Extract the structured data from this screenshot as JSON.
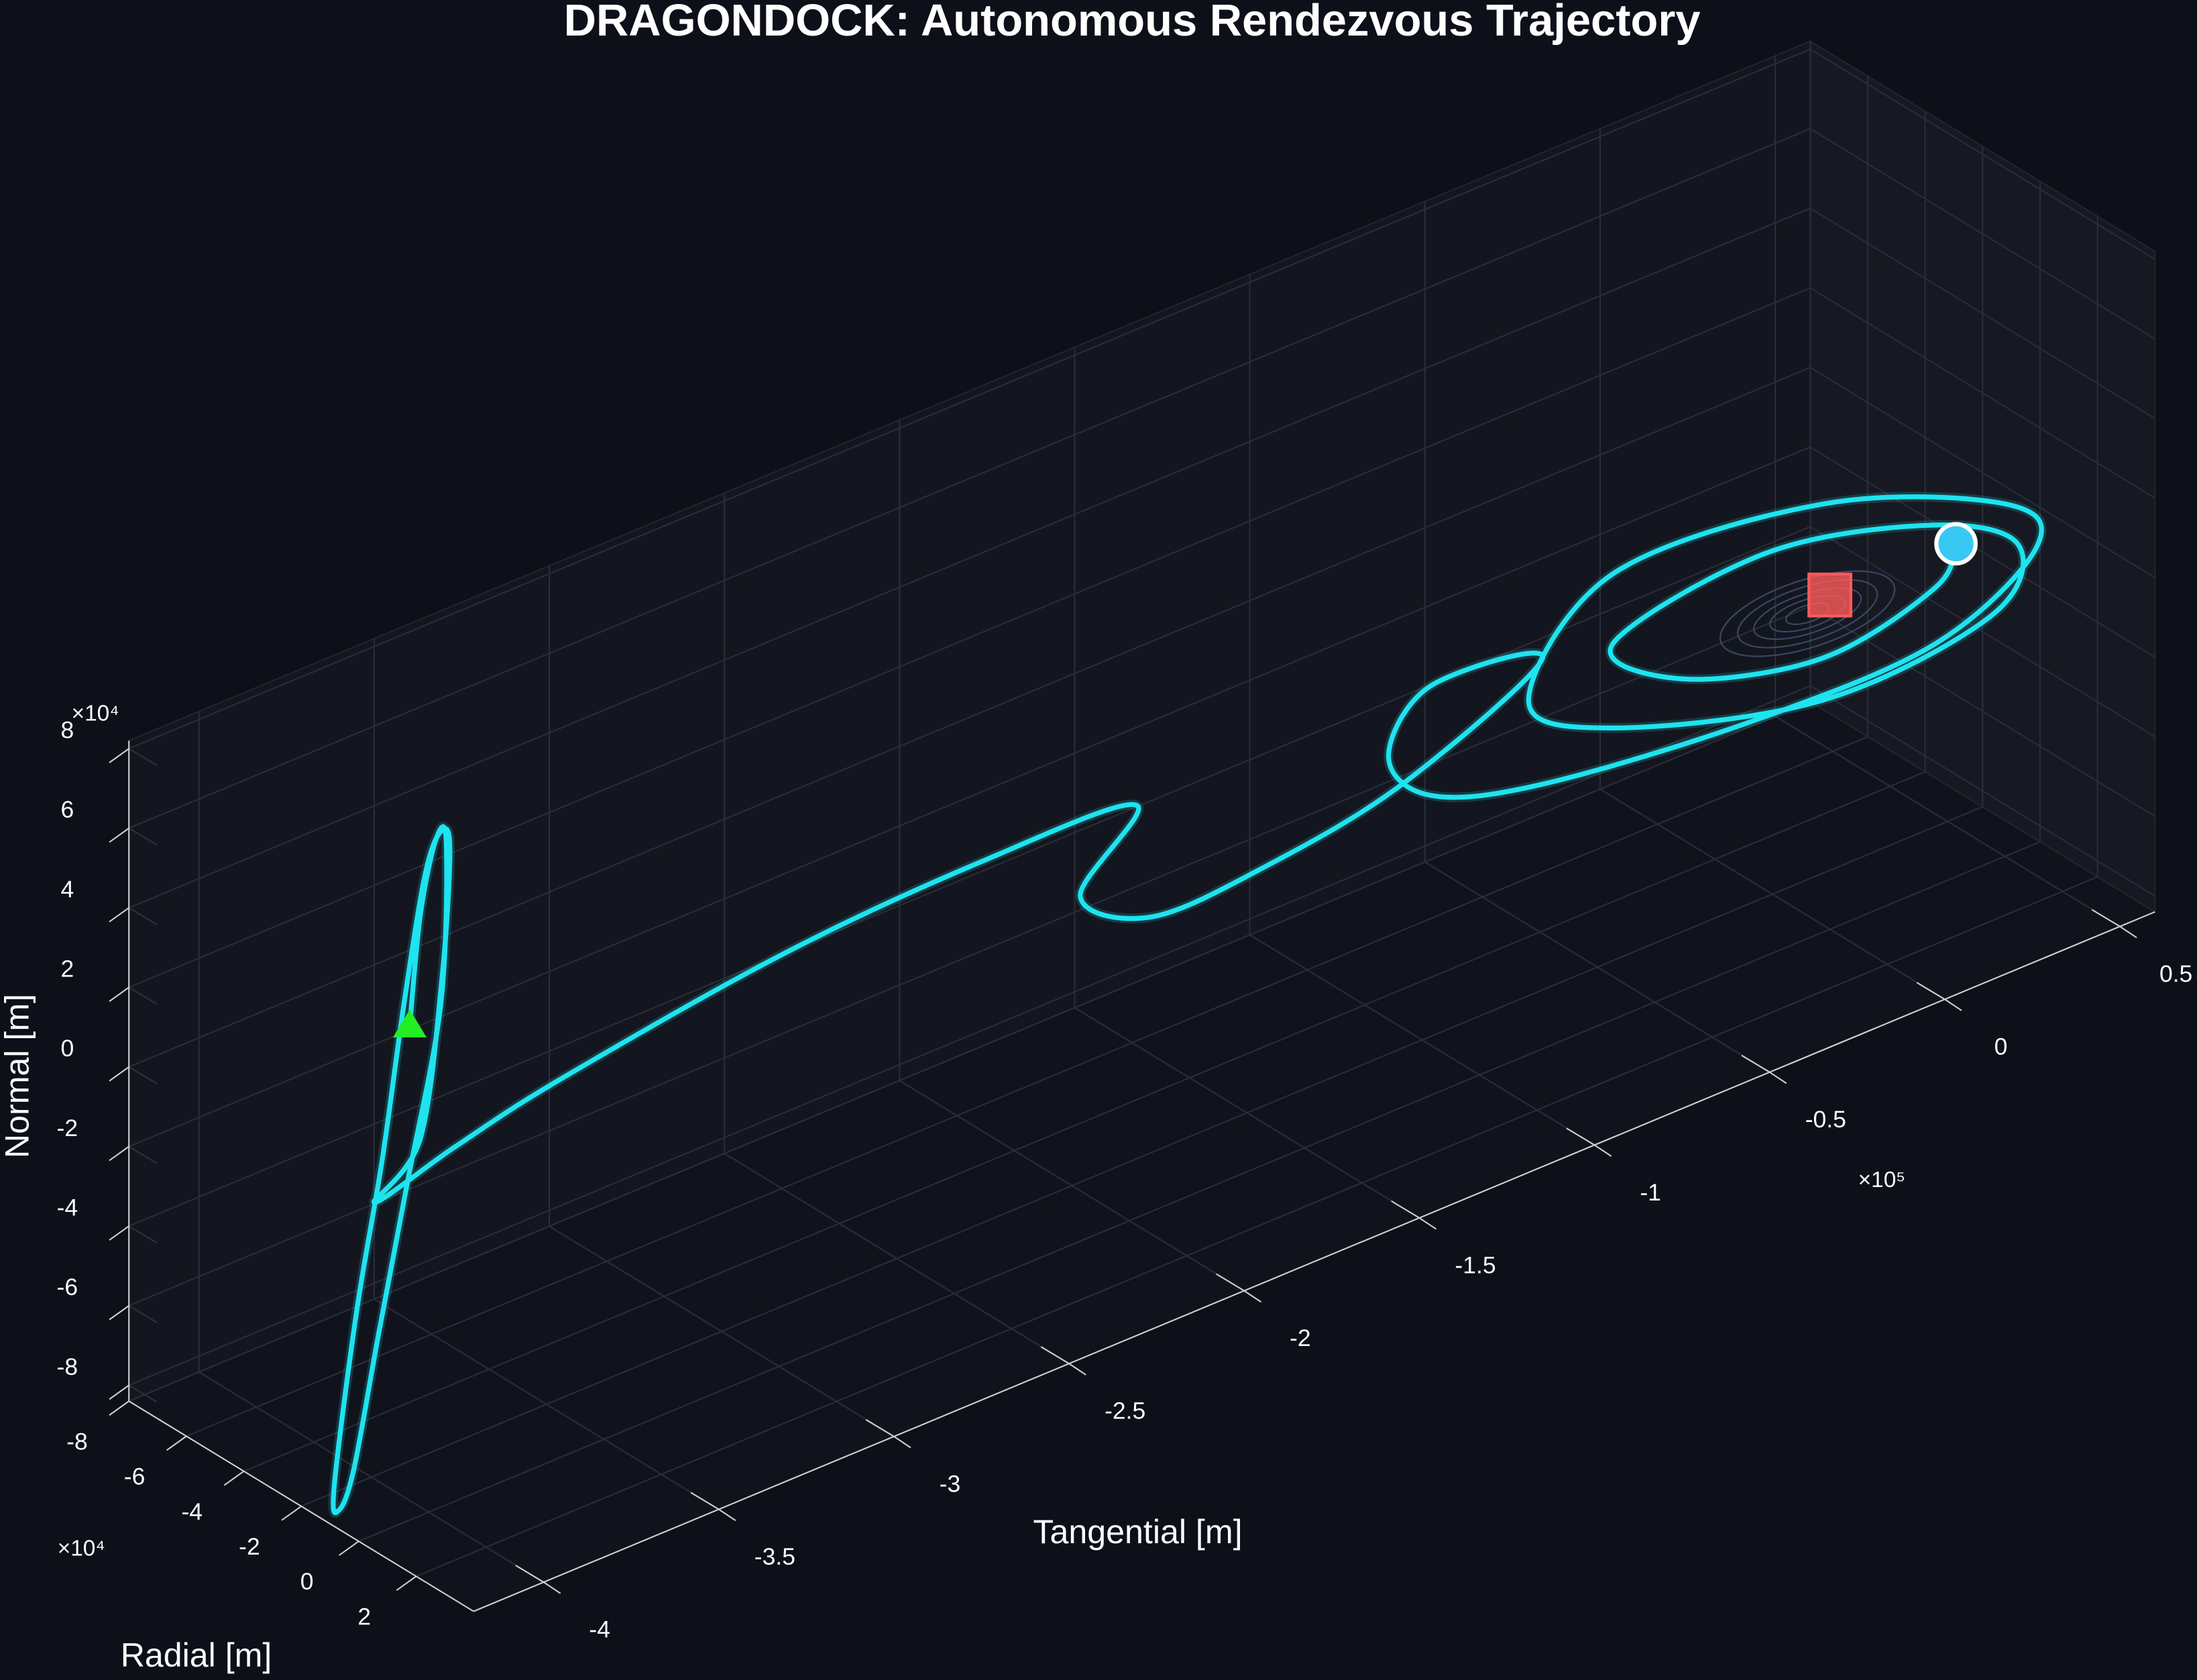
{
  "chart_data": {
    "type": "line3d",
    "title": "DRAGONDOCK: Autonomous Rendezvous Trajectory",
    "xlabel": "Tangential [m]",
    "ylabel": "Radial [m]",
    "zlabel": "Normal [m]",
    "x_exponent": "×10⁵",
    "y_exponent": "×10⁴",
    "z_exponent": "×10⁴",
    "xlim": [
      -4.2,
      0.6
    ],
    "ylim": [
      -8,
      4
    ],
    "zlim": [
      -8.4,
      8.2
    ],
    "xticks": [
      -4,
      -3.5,
      -3,
      -2.5,
      -2,
      -1.5,
      -1,
      -0.5,
      0,
      0.5
    ],
    "yticks": [
      -8,
      -6,
      -4,
      -2,
      0,
      2
    ],
    "zticks": [
      -8,
      -6,
      -4,
      -2,
      0,
      2,
      4,
      6,
      8
    ],
    "grid": true,
    "series": [
      {
        "color": "#1fe3ef",
        "x": [
          -3.8,
          -3.72,
          -3.65,
          -3.63,
          -3.72,
          -3.88,
          -4.02,
          -4.14,
          -4.19,
          -4.18,
          -4.05,
          -3.92,
          -3.8,
          -3.7,
          -3.64,
          -3.62,
          -3.7,
          -3.82,
          -3.95,
          -3.8,
          -3.62,
          -2.98,
          -2.42,
          -1.98,
          -2.14,
          -1.94,
          -1.62,
          -1.22,
          -0.82,
          -1.14,
          -1.26,
          -1.14,
          -0.82,
          -0.22,
          0.3,
          0.59,
          0.5,
          -0.02,
          -0.62,
          -0.86,
          -0.62,
          -0.02,
          0.46,
          0.54,
          0.3,
          -0.18,
          -0.62,
          -0.42,
          -0.02,
          0.3,
          0.36
        ],
        "y": [
          -3.1,
          -3.7,
          -4.0,
          -3.9,
          -3.0,
          -2.2,
          -1.5,
          -0.9,
          -0.8,
          -1.1,
          -1.9,
          -2.6,
          -3.3,
          -3.8,
          -4.0,
          -3.9,
          -3.2,
          -2.5,
          -2.5,
          -1.5,
          0,
          0,
          0,
          0,
          0,
          0,
          0,
          0,
          0,
          0,
          0,
          0,
          0,
          0,
          0,
          0,
          0,
          0,
          0,
          0,
          0,
          0,
          0,
          0,
          0,
          0,
          0,
          0,
          0,
          0,
          0
        ],
        "z": [
          1.75,
          4.0,
          5.5,
          5.3,
          2.0,
          -1.5,
          -4.5,
          -7.2,
          -8.0,
          -7.6,
          -4.0,
          -1.0,
          2.2,
          4.8,
          5.6,
          5.2,
          2.5,
          -0.8,
          -1.9,
          -0.6,
          1.11,
          1.93,
          2.17,
          1.97,
          0.27,
          -0.99,
          -0.93,
          -0.28,
          1.42,
          1.89,
          0.57,
          -0.86,
          -1.75,
          -2.36,
          -2.33,
          -0.96,
          0.46,
          2.36,
          2.8,
          0.51,
          -1.07,
          -2.57,
          -2.21,
          -0.74,
          0.66,
          1.72,
          1.04,
          -0.57,
          -1.51,
          -0.92,
          -0.03
        ]
      }
    ],
    "markers": [
      {
        "shape": "triangle",
        "color": "#22ee22",
        "x": -3.8,
        "y": -3.1,
        "z": 1.75
      },
      {
        "shape": "square",
        "color": "#ff5a5a",
        "x": 0,
        "y": 0,
        "z": 0
      },
      {
        "shape": "circle",
        "color": "#38c8f4",
        "x": 0.36,
        "y": 0,
        "z": -0.03
      }
    ]
  }
}
